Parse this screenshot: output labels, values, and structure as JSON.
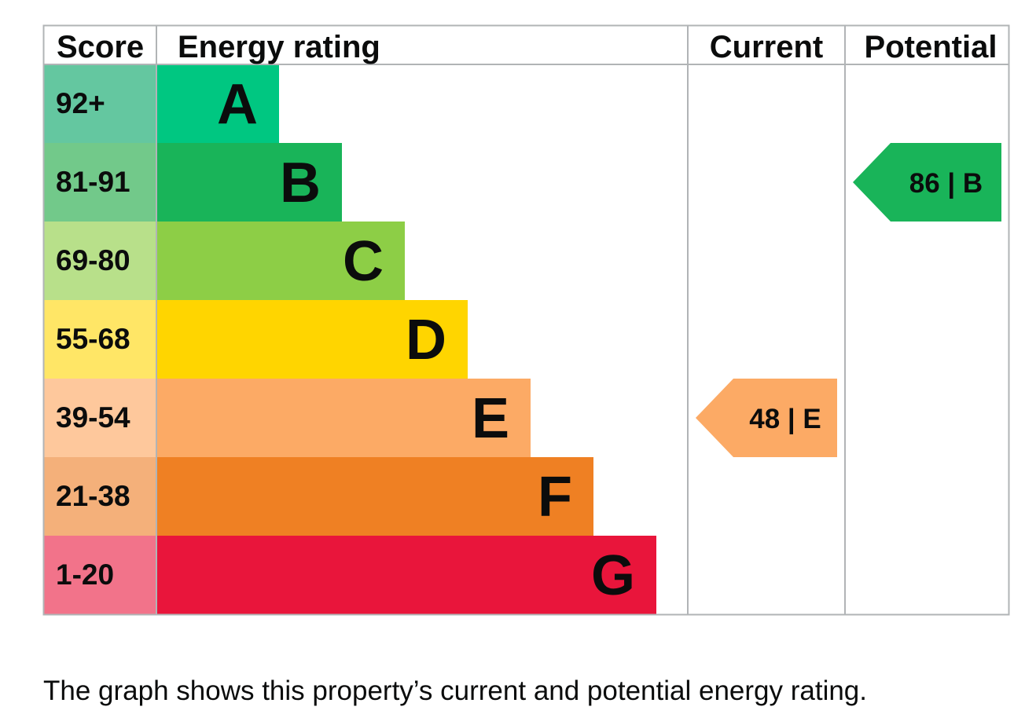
{
  "chart_data": {
    "type": "bar",
    "headers": {
      "score": "Score",
      "rating": "Energy rating",
      "current": "Current",
      "potential": "Potential"
    },
    "bands": [
      {
        "letter": "A",
        "range": "92+",
        "bar_color": "#00c781",
        "score_bg": "#64c7a0"
      },
      {
        "letter": "B",
        "range": "81-91",
        "bar_color": "#19b459",
        "score_bg": "#72c98a"
      },
      {
        "letter": "C",
        "range": "69-80",
        "bar_color": "#8dce46",
        "score_bg": "#b8e08a"
      },
      {
        "letter": "D",
        "range": "55-68",
        "bar_color": "#ffd500",
        "score_bg": "#ffe666"
      },
      {
        "letter": "E",
        "range": "39-54",
        "bar_color": "#fcaa65",
        "score_bg": "#fec89c"
      },
      {
        "letter": "F",
        "range": "21-38",
        "bar_color": "#ef8023",
        "score_bg": "#f4b07a"
      },
      {
        "letter": "G",
        "range": "1-20",
        "bar_color": "#e9153b",
        "score_bg": "#f2738a"
      }
    ],
    "current": {
      "score": 48,
      "band": "E",
      "label": "48 | E",
      "color": "#fcaa65"
    },
    "potential": {
      "score": 86,
      "band": "B",
      "label": "86 | B",
      "color": "#19b459"
    },
    "grid_color": "#b1b4b6"
  },
  "caption": "The graph shows this property’s current and potential energy rating."
}
